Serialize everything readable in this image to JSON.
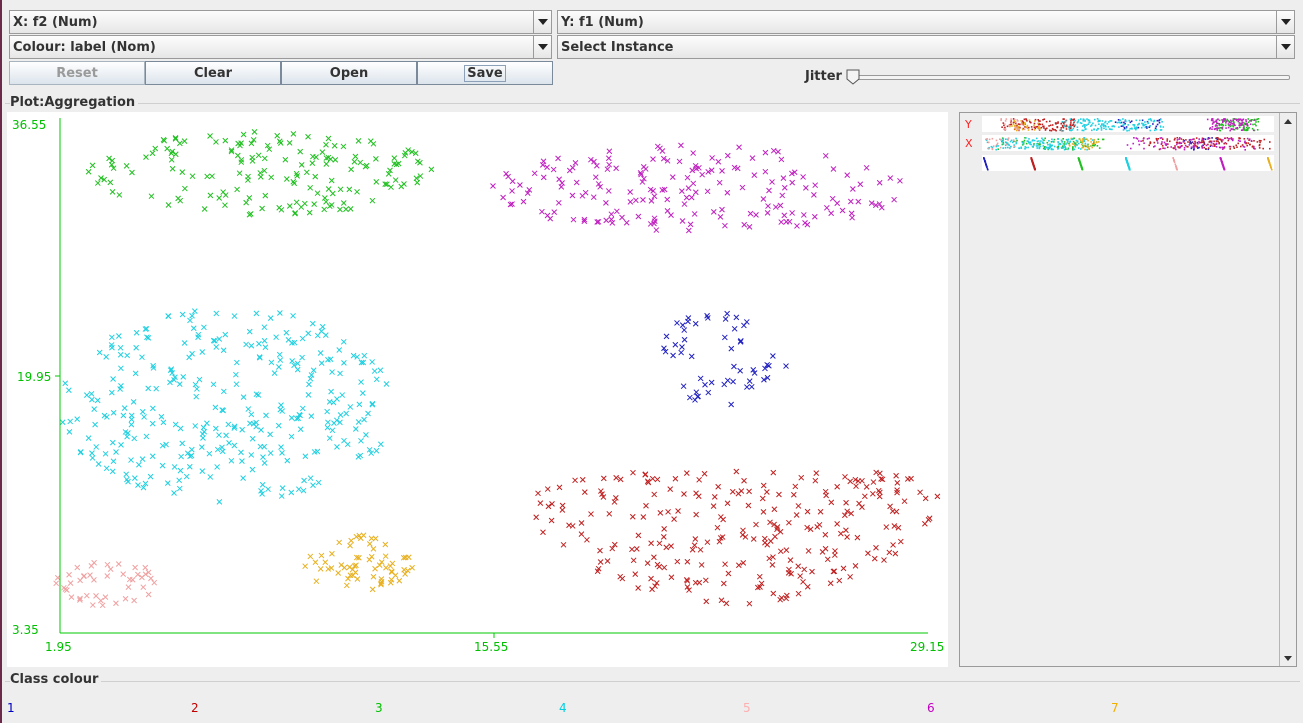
{
  "controls": {
    "x_axis": "X: f2 (Num)",
    "y_axis": "Y: f1 (Num)",
    "colour": "Colour: label (Nom)",
    "instance": "Select Instance",
    "buttons": {
      "reset": "Reset",
      "clear": "Clear",
      "open": "Open",
      "save": "Save"
    },
    "jitter_label": "Jitter",
    "jitter_value": 0
  },
  "plot": {
    "title": "Plot:Aggregation",
    "x_min_label": "1.95",
    "x_mid_label": "15.55",
    "x_max_label": "29.15",
    "y_max_label": "36.55",
    "y_mid_label": "19.95",
    "y_min_label": "3.35"
  },
  "side": {
    "y_label": "Y",
    "x_label": "X"
  },
  "legend": {
    "title": "Class colour",
    "items": [
      {
        "label": "1",
        "color": "#0000c0"
      },
      {
        "label": "2",
        "color": "#c00000"
      },
      {
        "label": "3",
        "color": "#00c000"
      },
      {
        "label": "4",
        "color": "#00d0e0"
      },
      {
        "label": "5",
        "color": "#ffafaf"
      },
      {
        "label": "6",
        "color": "#c000c0"
      },
      {
        "label": "7",
        "color": "#f0b000"
      }
    ]
  },
  "chart_data": {
    "type": "scatter",
    "title": "Plot:Aggregation",
    "xlabel": "f2",
    "ylabel": "f1",
    "xlim": [
      1.95,
      29.15
    ],
    "ylim": [
      3.35,
      36.55
    ],
    "marker": "x",
    "grid": false,
    "clusters": [
      {
        "name": "1",
        "color": "#2020c0",
        "center": [
          22.5,
          21.0
        ],
        "spread": [
          2.3,
          3.0
        ],
        "count": 55
      },
      {
        "name": "2",
        "color": "#c02020",
        "center": [
          23.0,
          9.5
        ],
        "spread": [
          6.5,
          4.3
        ],
        "count": 260
      },
      {
        "name": "3",
        "color": "#20c020",
        "center": [
          8.3,
          33.0
        ],
        "spread": [
          5.5,
          2.7
        ],
        "count": 170
      },
      {
        "name": "4",
        "color": "#20d0e0",
        "center": [
          7.2,
          18.0
        ],
        "spread": [
          5.3,
          6.3
        ],
        "count": 320
      },
      {
        "name": "5",
        "color": "#f0a0a0",
        "center": [
          3.4,
          6.6
        ],
        "spread": [
          1.6,
          1.6
        ],
        "count": 45
      },
      {
        "name": "6",
        "color": "#c020c0",
        "center": [
          22.0,
          32.0
        ],
        "spread": [
          6.5,
          2.8
        ],
        "count": 190
      },
      {
        "name": "7",
        "color": "#e8b020",
        "center": [
          11.3,
          7.8
        ],
        "spread": [
          1.7,
          1.9
        ],
        "count": 65
      }
    ]
  }
}
